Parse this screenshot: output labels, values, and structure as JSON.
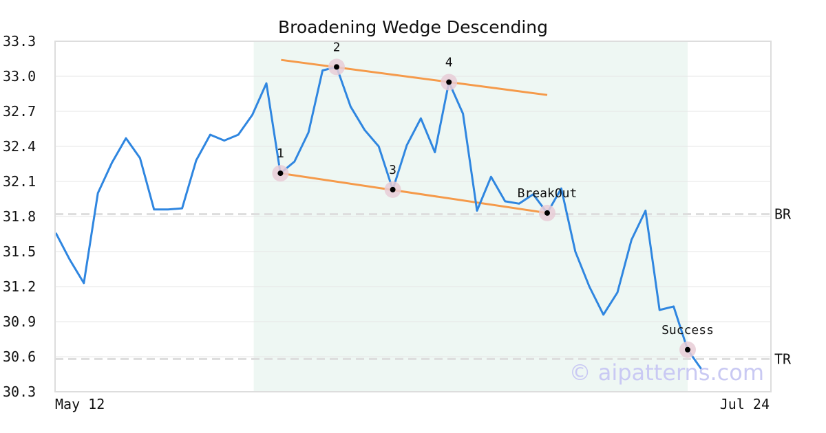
{
  "chart_data": {
    "type": "line",
    "title": "Broadening Wedge Descending",
    "xlabel": "",
    "ylabel": "",
    "ylim": [
      30.3,
      33.3
    ],
    "yticks": [
      "33.3",
      "33.0",
      "32.7",
      "32.4",
      "32.1",
      "31.8",
      "31.5",
      "31.2",
      "30.9",
      "30.6",
      "30.3"
    ],
    "x_tick_labels": [
      "May 12",
      "Jul 24"
    ],
    "grid": true,
    "colors": {
      "price_line": "#2f86e0",
      "wedge_lines": "#f59a4a",
      "pattern_region": "#eef7f3",
      "level_lines": "#dddddd",
      "marker_halo": "#e8cdd6",
      "marker_dot": "#000000",
      "watermark": "#c9c9f3"
    },
    "series": [
      {
        "values": [
          31.66,
          31.43,
          31.23,
          32.0,
          32.26,
          32.47,
          32.3,
          31.86,
          31.86,
          31.87,
          32.28,
          32.5,
          32.45,
          32.5,
          32.67,
          32.94,
          32.17,
          32.27,
          32.52,
          33.05,
          33.08,
          32.74,
          32.54,
          32.4,
          32.03,
          32.41,
          32.64,
          32.35,
          32.95,
          32.68,
          31.85,
          32.14,
          31.93,
          31.91,
          31.99,
          31.83,
          32.04,
          31.5,
          31.2,
          30.96,
          31.15,
          31.6,
          31.85,
          31.0,
          31.03,
          30.66,
          30.49
        ]
      }
    ],
    "pattern_region": {
      "start_index": 14,
      "end_index": 45
    },
    "wedge_upper": {
      "start": [
        16,
        33.14
      ],
      "end": [
        35,
        32.84
      ]
    },
    "wedge_lower": {
      "start": [
        16,
        32.17
      ],
      "end": [
        35,
        31.83
      ]
    },
    "levels": [
      {
        "label": "BR",
        "value": 31.82
      },
      {
        "label": "TR",
        "value": 30.58
      }
    ],
    "points": [
      {
        "label": "1",
        "index": 16,
        "value": 32.17
      },
      {
        "label": "2",
        "index": 20,
        "value": 33.08
      },
      {
        "label": "3",
        "index": 24,
        "value": 32.03
      },
      {
        "label": "4",
        "index": 28,
        "value": 32.95
      },
      {
        "label": "BreakOut",
        "index": 35,
        "value": 31.83
      },
      {
        "label": "Success",
        "index": 45,
        "value": 30.66
      }
    ],
    "watermark": "© aipatterns.com"
  }
}
